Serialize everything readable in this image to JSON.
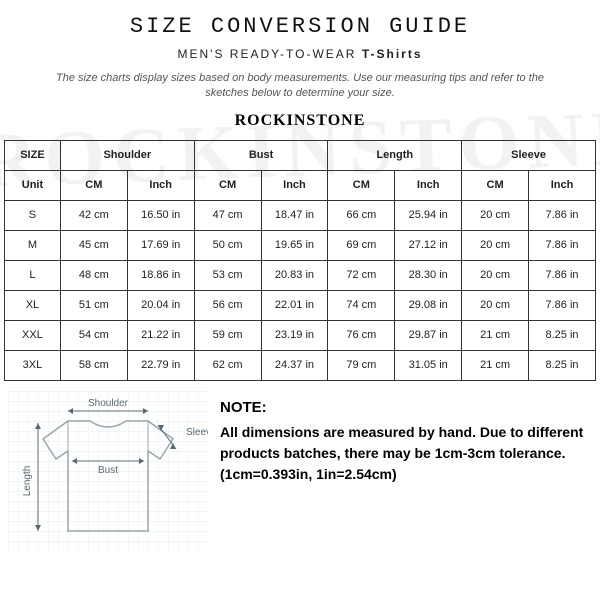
{
  "title": "SIZE CONVERSION GUIDE",
  "subtitle_prefix": "MEN'S READY-TO-WEAR",
  "subtitle_bold": "T-Shirts",
  "intro": "The size charts display sizes based on body measurements. Use our measuring tips and refer to the sketches below to determine your size.",
  "brand": "ROCKINSTONE",
  "watermark": "ROCKINSTONE",
  "table": {
    "headers": {
      "size": "SIZE",
      "shoulder": "Shoulder",
      "bust": "Bust",
      "length": "Length",
      "sleeve": "Sleeve"
    },
    "unit_row": {
      "label": "Unit",
      "cm": "CM",
      "inch": "Inch"
    },
    "rows": [
      {
        "size": "S",
        "shoulder_cm": "42 cm",
        "shoulder_in": "16.50 in",
        "bust_cm": "47 cm",
        "bust_in": "18.47 in",
        "length_cm": "66 cm",
        "length_in": "25.94 in",
        "sleeve_cm": "20 cm",
        "sleeve_in": "7.86 in"
      },
      {
        "size": "M",
        "shoulder_cm": "45 cm",
        "shoulder_in": "17.69 in",
        "bust_cm": "50 cm",
        "bust_in": "19.65 in",
        "length_cm": "69 cm",
        "length_in": "27.12 in",
        "sleeve_cm": "20 cm",
        "sleeve_in": "7.86 in"
      },
      {
        "size": "L",
        "shoulder_cm": "48 cm",
        "shoulder_in": "18.86 in",
        "bust_cm": "53 cm",
        "bust_in": "20.83 in",
        "length_cm": "72 cm",
        "length_in": "28.30 in",
        "sleeve_cm": "20 cm",
        "sleeve_in": "7.86 in"
      },
      {
        "size": "XL",
        "shoulder_cm": "51 cm",
        "shoulder_in": "20.04 in",
        "bust_cm": "56 cm",
        "bust_in": "22.01 in",
        "length_cm": "74 cm",
        "length_in": "29.08 in",
        "sleeve_cm": "20 cm",
        "sleeve_in": "7.86 in"
      },
      {
        "size": "XXL",
        "shoulder_cm": "54 cm",
        "shoulder_in": "21.22 in",
        "bust_cm": "59 cm",
        "bust_in": "23.19 in",
        "length_cm": "76 cm",
        "length_in": "29.87 in",
        "sleeve_cm": "21 cm",
        "sleeve_in": "8.25 in"
      },
      {
        "size": "3XL",
        "shoulder_cm": "58 cm",
        "shoulder_in": "22.79 in",
        "bust_cm": "62 cm",
        "bust_in": "24.37 in",
        "length_cm": "79 cm",
        "length_in": "31.05 in",
        "sleeve_cm": "21 cm",
        "sleeve_in": "8.25 in"
      }
    ]
  },
  "diagram": {
    "labels": {
      "shoulder": "Shoulder",
      "bust": "Bust",
      "sleeve": "Sleeve",
      "length": "Length"
    },
    "colors": {
      "grid": "#d8e8ee",
      "background": "#ffffff",
      "shirt_stroke": "#98a5ab",
      "label_text": "#5b6a72",
      "arrow": "#5b6a72"
    }
  },
  "note": {
    "title": "NOTE:",
    "body": "All dimensions are measured by hand. Due to different products batches, there may be 1cm-3cm tolerance. (1cm=0.393in, 1in=2.54cm)"
  }
}
